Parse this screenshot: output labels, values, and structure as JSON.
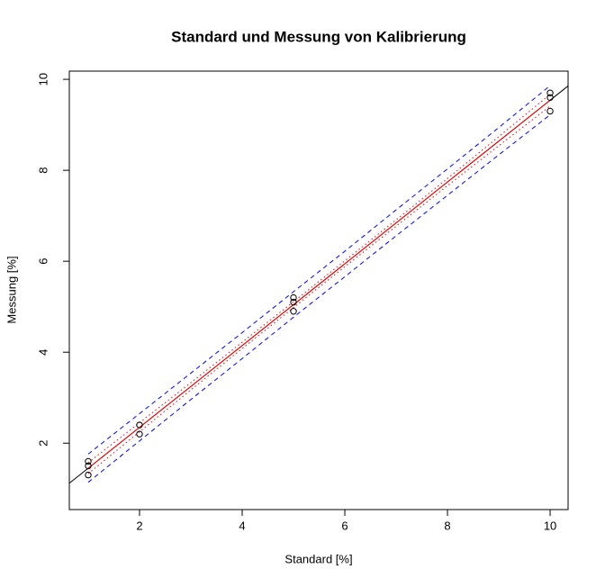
{
  "chart_data": {
    "type": "scatter",
    "title": "Standard und Messung von Kalibrierung",
    "x_label": "Standard [%]",
    "y_label": "Messung [%]",
    "xlim": [
      0.632,
      10.35
    ],
    "ylim": [
      0.54,
      10.18
    ],
    "xticks": [
      2,
      4,
      6,
      8,
      10
    ],
    "yticks": [
      2,
      4,
      6,
      8,
      10
    ],
    "points": {
      "color": "#000000",
      "x": [
        1,
        1,
        1,
        2,
        2,
        5,
        5,
        5,
        10,
        10,
        10
      ],
      "y": [
        1.6,
        1.5,
        1.3,
        2.4,
        2.2,
        5.2,
        5.1,
        4.9,
        9.7,
        9.6,
        9.3
      ]
    },
    "abline": {
      "intercept": 0.55,
      "slope": 0.899,
      "color": "#000000"
    },
    "lines": [
      {
        "color": "#ff0000",
        "style": "solid",
        "x": [
          1,
          2,
          3,
          4,
          5,
          6,
          7,
          8,
          9,
          10
        ],
        "values": [
          1.449,
          2.348,
          3.247,
          4.146,
          5.045,
          5.944,
          6.843,
          7.742,
          8.641,
          9.54
        ]
      },
      {
        "color": "#ff0000",
        "style": "dotted",
        "x": [
          1,
          2,
          3,
          4,
          5,
          6,
          7,
          8,
          9,
          10
        ],
        "values": [
          1.57,
          2.45,
          3.33,
          4.22,
          5.11,
          6.01,
          6.91,
          7.82,
          8.74,
          9.67
        ]
      },
      {
        "color": "#ff0000",
        "style": "dotted",
        "x": [
          1,
          2,
          3,
          4,
          5,
          6,
          7,
          8,
          9,
          10
        ],
        "values": [
          1.33,
          2.25,
          3.17,
          4.08,
          4.98,
          5.88,
          6.77,
          7.66,
          8.54,
          9.41
        ]
      },
      {
        "color": "#0000ff",
        "style": "dashed",
        "x": [
          1,
          2,
          3,
          4,
          5,
          6,
          7,
          8,
          9,
          10
        ],
        "values": [
          1.76,
          2.65,
          3.54,
          4.43,
          5.33,
          6.22,
          7.13,
          8.03,
          8.94,
          9.86
        ]
      },
      {
        "color": "#0000ff",
        "style": "dashed",
        "x": [
          1,
          2,
          3,
          4,
          5,
          6,
          7,
          8,
          9,
          10
        ],
        "values": [
          1.14,
          2.05,
          2.96,
          3.86,
          4.77,
          5.66,
          6.56,
          7.45,
          8.34,
          9.22
        ]
      }
    ]
  }
}
